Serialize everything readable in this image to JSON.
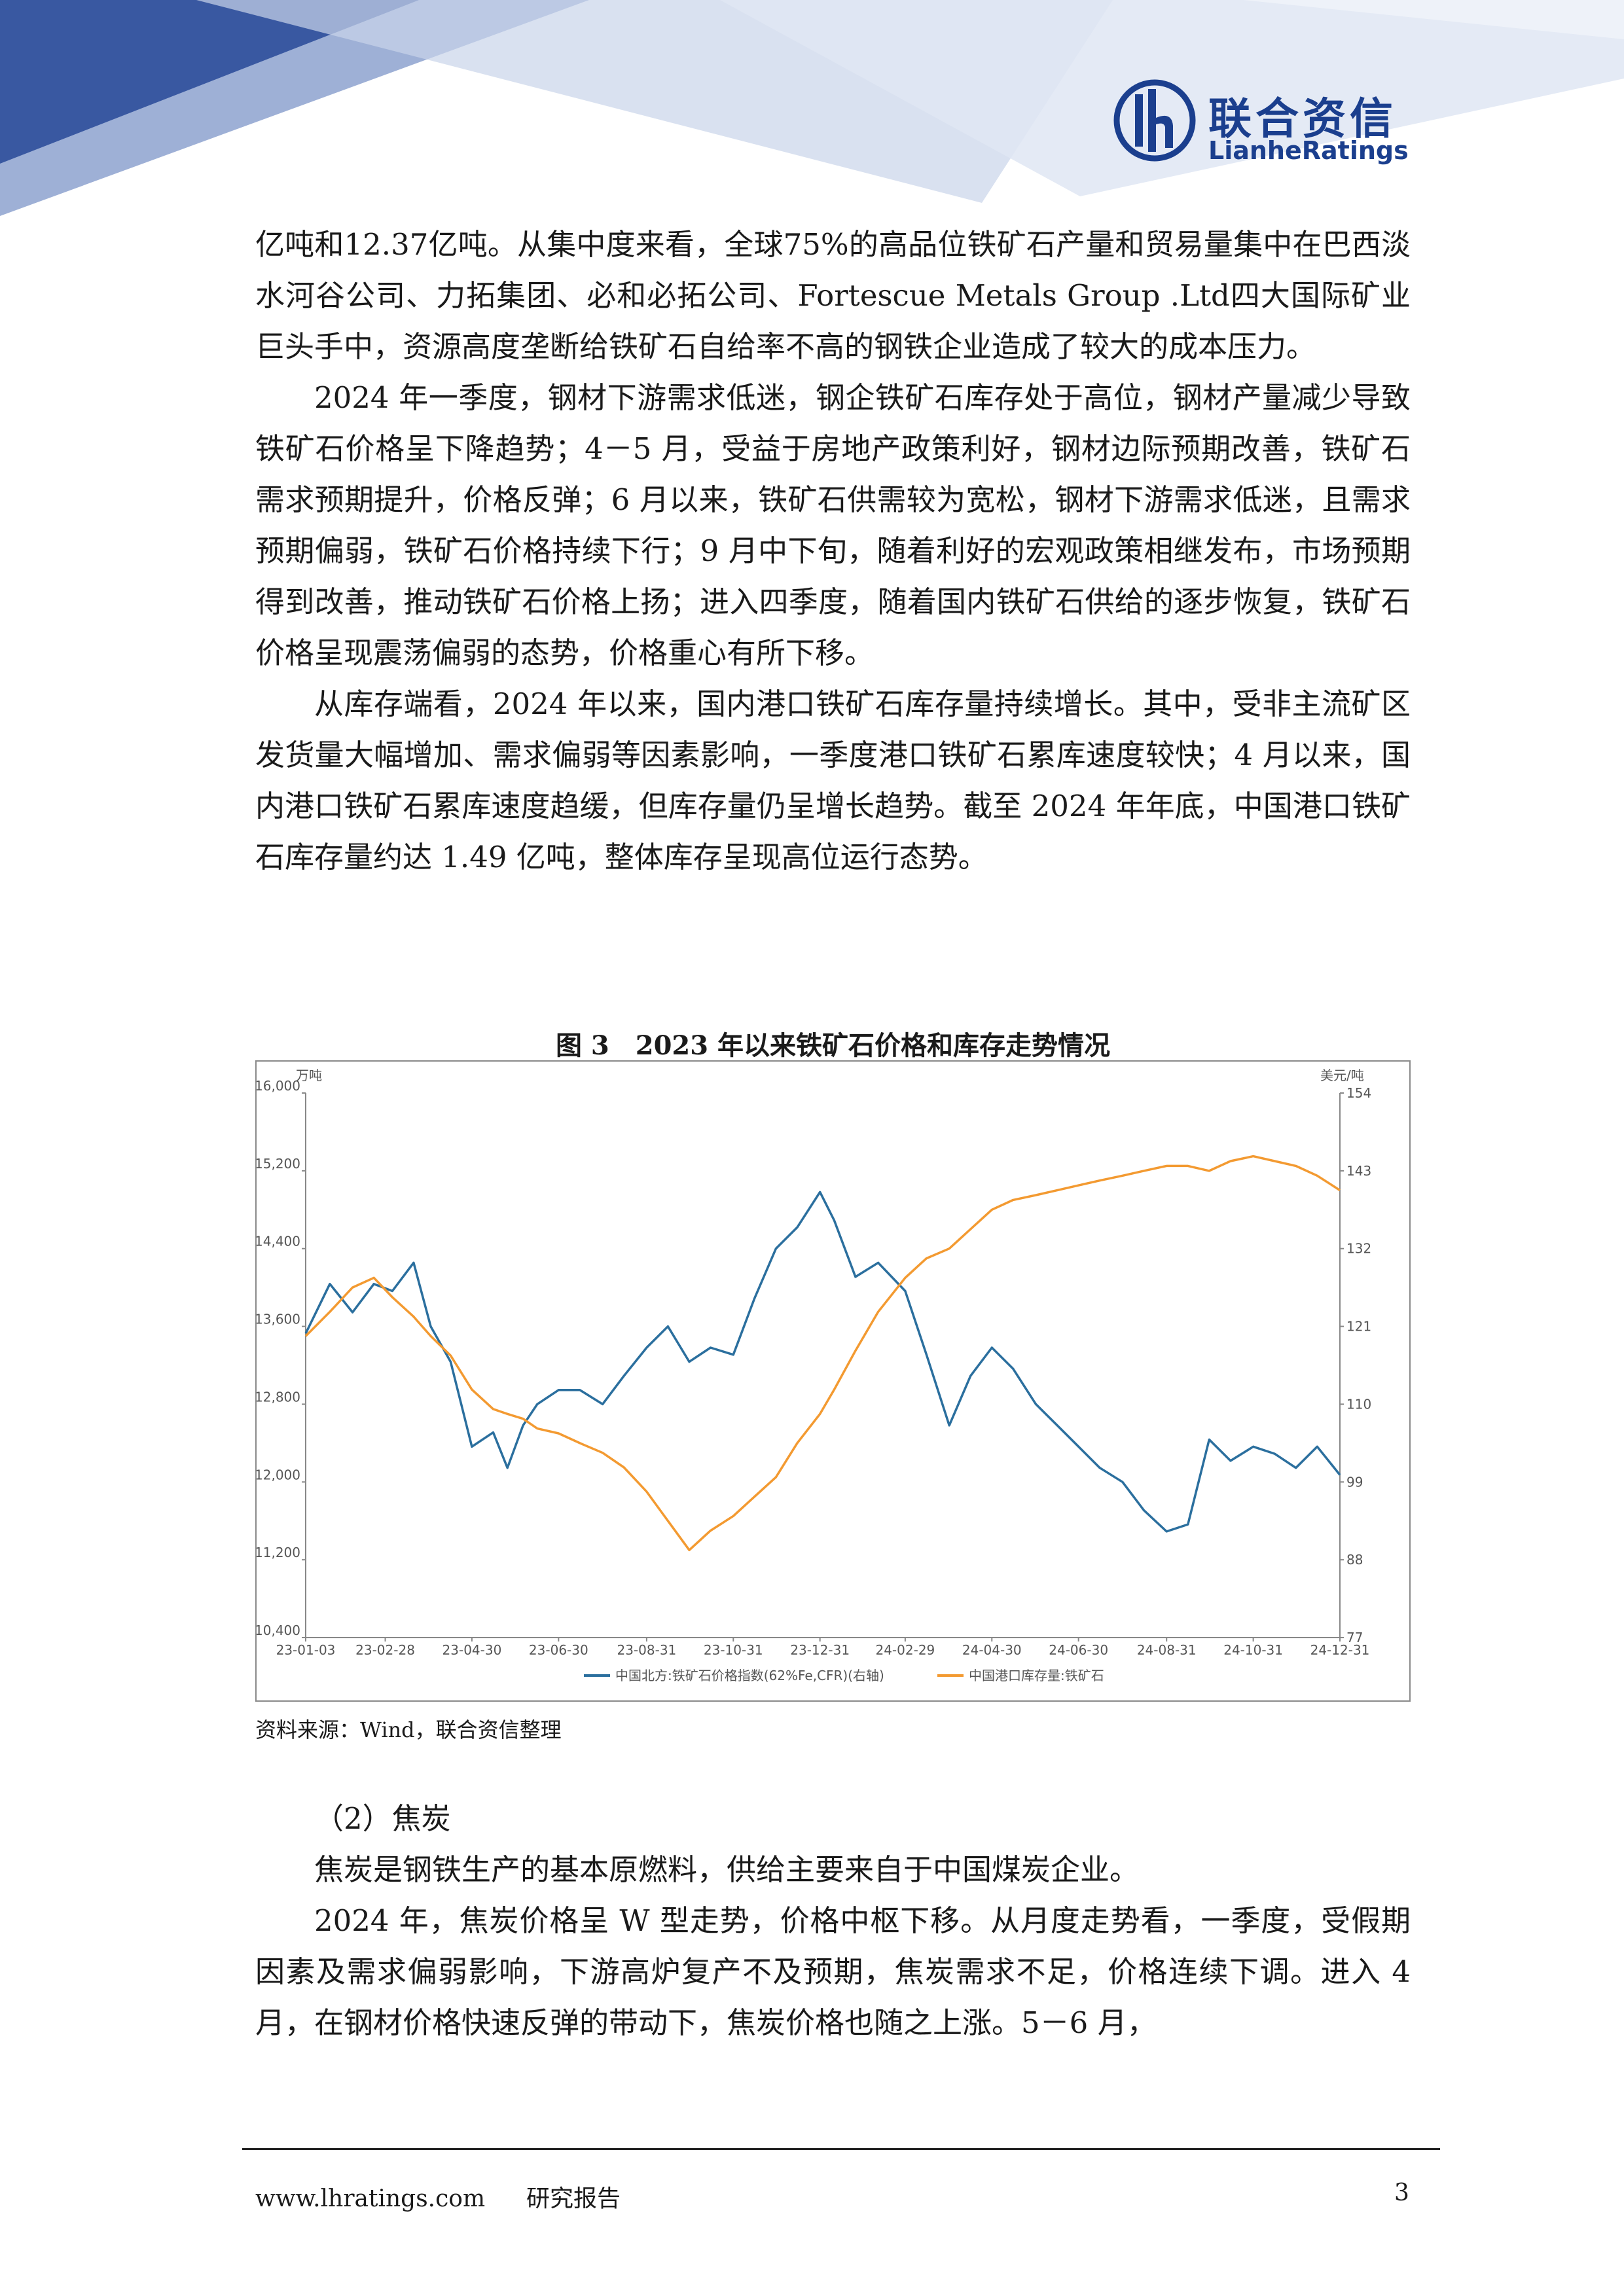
{
  "header": {
    "logo_cn": "联合资信",
    "logo_en": "LianheRatings",
    "brand_color": "#1b3f8e",
    "icon": "lianhe-logo-icon"
  },
  "paragraphs": [
    "亿吨和12.37亿吨。从集中度来看，全球75%的高品位铁矿石产量和贸易量集中在巴西淡水河谷公司、力拓集团、必和必拓公司、Fortescue Metals Group .Ltd四大国际矿业巨头手中，资源高度垄断给铁矿石自给率不高的钢铁企业造成了较大的成本压力。",
    "2024 年一季度，钢材下游需求低迷，钢企铁矿石库存处于高位，钢材产量减少导致铁矿石价格呈下降趋势；4－5 月，受益于房地产政策利好，钢材边际预期改善，铁矿石需求预期提升，价格反弹；6 月以来，铁矿石供需较为宽松，钢材下游需求低迷，且需求预期偏弱，铁矿石价格持续下行；9 月中下旬，随着利好的宏观政策相继发布，市场预期得到改善，推动铁矿石价格上扬；进入四季度，随着国内铁矿石供给的逐步恢复，铁矿石价格呈现震荡偏弱的态势，价格重心有所下移。",
    "从库存端看，2024 年以来，国内港口铁矿石库存量持续增长。其中，受非主流矿区发货量大幅增加、需求偏弱等因素影响，一季度港口铁矿石累库速度较快；4 月以来，国内港口铁矿石累库速度趋缓，但库存量仍呈增长趋势。截至 2024 年年底，中国港口铁矿石库存量约达 1.49 亿吨，整体库存呈现高位运行态势。"
  ],
  "figure": {
    "title": "图 3　2023 年以来铁矿石价格和库存走势情况",
    "source": "资料来源：Wind，联合资信整理"
  },
  "chart_data": {
    "type": "line",
    "left_axis_unit": "万吨",
    "right_axis_unit": "美元/吨",
    "left_ticks": [
      "16,000",
      "15,200",
      "14,400",
      "13,600",
      "12,800",
      "12,000",
      "11,200",
      "10,400"
    ],
    "right_ticks": [
      "154",
      "143",
      "132",
      "121",
      "110",
      "99",
      "88",
      "77"
    ],
    "left_ylim": [
      10400,
      16000
    ],
    "right_ylim": [
      77,
      154
    ],
    "x_ticks": [
      "23-01-03",
      "23-02-28",
      "23-04-30",
      "23-06-30",
      "23-08-31",
      "23-10-31",
      "23-12-31",
      "24-02-29",
      "24-04-30",
      "24-06-30",
      "24-08-31",
      "24-10-31",
      "24-12-31"
    ],
    "series": [
      {
        "name": "中国北方:铁矿石价格指数(62%Fe,CFR)(右轴)",
        "axis": "right",
        "color": "#2b6f9e",
        "x": [
          "23-01-03",
          "23-01-20",
          "23-02-05",
          "23-02-20",
          "23-03-05",
          "23-03-20",
          "23-04-01",
          "23-04-15",
          "23-04-30",
          "23-05-15",
          "23-05-25",
          "23-06-05",
          "23-06-15",
          "23-06-30",
          "23-07-15",
          "23-07-31",
          "23-08-15",
          "23-08-31",
          "23-09-15",
          "23-09-30",
          "23-10-15",
          "23-10-31",
          "23-11-15",
          "23-11-30",
          "23-12-15",
          "23-12-31",
          "24-01-10",
          "24-01-25",
          "24-02-10",
          "24-02-29",
          "24-03-15",
          "24-03-31",
          "24-04-15",
          "24-04-30",
          "24-05-15",
          "24-05-31",
          "24-06-15",
          "24-06-30",
          "24-07-15",
          "24-07-31",
          "24-08-15",
          "24-08-31",
          "24-09-15",
          "24-09-30",
          "24-10-15",
          "24-10-31",
          "24-11-15",
          "24-11-30",
          "24-12-15",
          "24-12-31"
        ],
        "values": [
          120,
          127,
          123,
          127,
          126,
          130,
          121,
          116,
          104,
          106,
          101,
          107,
          110,
          112,
          112,
          110,
          114,
          118,
          121,
          116,
          118,
          117,
          125,
          132,
          135,
          140,
          136,
          128,
          130,
          126,
          117,
          107,
          114,
          118,
          115,
          110,
          107,
          104,
          101,
          99,
          95,
          92,
          93,
          105,
          102,
          104,
          103,
          101,
          104,
          100
        ]
      },
      {
        "name": "中国港口库存量:铁矿石",
        "axis": "left",
        "color": "#f39a31",
        "x": [
          "23-01-03",
          "23-01-20",
          "23-02-05",
          "23-02-20",
          "23-03-05",
          "23-03-20",
          "23-04-01",
          "23-04-15",
          "23-04-30",
          "23-05-15",
          "23-05-25",
          "23-06-05",
          "23-06-15",
          "23-06-30",
          "23-07-15",
          "23-07-31",
          "23-08-15",
          "23-08-31",
          "23-09-15",
          "23-09-30",
          "23-10-15",
          "23-10-31",
          "23-11-15",
          "23-11-30",
          "23-12-15",
          "23-12-31",
          "24-01-10",
          "24-01-25",
          "24-02-10",
          "24-02-29",
          "24-03-15",
          "24-03-31",
          "24-04-15",
          "24-04-30",
          "24-05-15",
          "24-05-31",
          "24-06-15",
          "24-06-30",
          "24-07-15",
          "24-07-31",
          "24-08-15",
          "24-08-31",
          "24-09-15",
          "24-09-30",
          "24-10-15",
          "24-10-31",
          "24-11-15",
          "24-11-30",
          "24-12-15",
          "24-12-31"
        ],
        "values": [
          13500,
          13750,
          14000,
          14100,
          13900,
          13700,
          13500,
          13300,
          12950,
          12750,
          12700,
          12650,
          12550,
          12500,
          12400,
          12300,
          12150,
          11900,
          11600,
          11300,
          11500,
          11650,
          11850,
          12050,
          12400,
          12700,
          12950,
          13350,
          13750,
          14100,
          14300,
          14400,
          14600,
          14800,
          14900,
          14950,
          15000,
          15050,
          15100,
          15150,
          15200,
          15250,
          15250,
          15200,
          15300,
          15350,
          15300,
          15250,
          15150,
          15000
        ]
      }
    ],
    "grid": false,
    "legend_position": "bottom"
  },
  "section2": {
    "heading": "（2）焦炭",
    "paragraphs": [
      "焦炭是钢铁生产的基本原燃料，供给主要来自于中国煤炭企业。",
      "2024 年，焦炭价格呈 W 型走势，价格中枢下移。从月度走势看，一季度，受假期因素及需求偏弱影响，下游高炉复产不及预期，焦炭需求不足，价格连续下调。进入 4 月，在钢材价格快速反弹的带动下，焦炭价格也随之上涨。5－6 月，"
    ]
  },
  "footer": {
    "site": "www.lhratings.com",
    "doc_type": "研究报告",
    "page": "3"
  }
}
